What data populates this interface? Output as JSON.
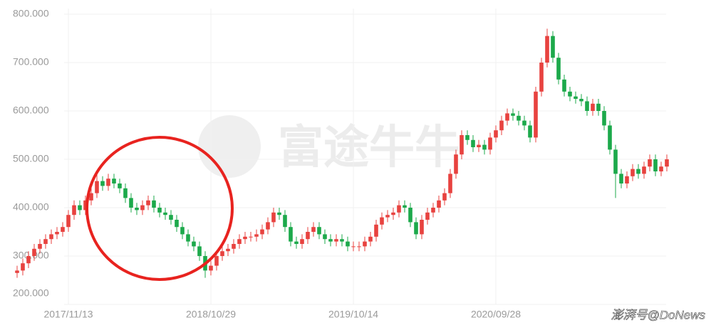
{
  "chart_data": {
    "type": "candlestick",
    "watermark": "富途牛牛",
    "source_credit": "澎湃号@DoNews",
    "up_color": "#e8423f",
    "down_color": "#1ca94b",
    "grid": true,
    "ylim": [
      200,
      800
    ],
    "yticks": [
      {
        "value": 200,
        "label": "200.000"
      },
      {
        "value": 300,
        "label": "300.000"
      },
      {
        "value": 400,
        "label": "400.000"
      },
      {
        "value": 500,
        "label": "500.000"
      },
      {
        "value": 600,
        "label": "600.000"
      },
      {
        "value": 700,
        "label": "700.000"
      },
      {
        "value": 800,
        "label": "800.000"
      }
    ],
    "categories": [
      null,
      null,
      null,
      null,
      null,
      null,
      null,
      null,
      null,
      "2017/11/13",
      null,
      null,
      null,
      null,
      null,
      null,
      null,
      null,
      null,
      null,
      null,
      null,
      null,
      null,
      null,
      null,
      null,
      null,
      null,
      null,
      null,
      null,
      null,
      null,
      "2018/10/29",
      null,
      null,
      null,
      null,
      null,
      null,
      null,
      null,
      null,
      null,
      null,
      null,
      null,
      null,
      null,
      null,
      null,
      null,
      null,
      null,
      null,
      null,
      null,
      null,
      "2019/10/14",
      null,
      null,
      null,
      null,
      null,
      null,
      null,
      null,
      null,
      null,
      null,
      null,
      null,
      null,
      null,
      null,
      null,
      null,
      null,
      null,
      null,
      null,
      null,
      null,
      "2020/09/28",
      null,
      null,
      null,
      null,
      null,
      null,
      null,
      null,
      null,
      null,
      null,
      null,
      null,
      null,
      null,
      null,
      null,
      null,
      null,
      null,
      null,
      null,
      null,
      null,
      null,
      null,
      null,
      null,
      null,
      null
    ],
    "open": [
      265,
      270,
      285,
      300,
      315,
      325,
      335,
      345,
      350,
      360,
      385,
      405,
      395,
      415,
      430,
      455,
      445,
      460,
      450,
      440,
      420,
      400,
      395,
      405,
      415,
      400,
      390,
      385,
      375,
      360,
      345,
      330,
      320,
      300,
      270,
      280,
      300,
      310,
      315,
      325,
      335,
      340,
      340,
      345,
      355,
      370,
      390,
      385,
      360,
      330,
      325,
      335,
      350,
      360,
      345,
      335,
      330,
      335,
      330,
      320,
      320,
      320,
      330,
      340,
      365,
      380,
      385,
      390,
      405,
      400,
      370,
      345,
      375,
      390,
      400,
      415,
      430,
      470,
      510,
      550,
      540,
      525,
      530,
      520,
      545,
      560,
      580,
      595,
      590,
      580,
      570,
      545,
      640,
      700,
      755,
      710,
      665,
      640,
      630,
      625,
      620,
      600,
      615,
      600,
      570,
      520,
      470,
      450,
      465,
      480,
      470,
      485,
      500,
      475,
      485
    ],
    "high": [
      280,
      295,
      310,
      325,
      335,
      345,
      355,
      360,
      370,
      395,
      415,
      415,
      425,
      440,
      470,
      465,
      470,
      470,
      460,
      450,
      430,
      410,
      415,
      425,
      425,
      410,
      400,
      395,
      385,
      370,
      355,
      340,
      330,
      310,
      290,
      310,
      320,
      325,
      335,
      345,
      350,
      350,
      355,
      365,
      380,
      400,
      400,
      395,
      370,
      340,
      345,
      360,
      370,
      370,
      355,
      345,
      345,
      345,
      340,
      330,
      330,
      340,
      350,
      375,
      390,
      395,
      400,
      415,
      415,
      410,
      380,
      385,
      400,
      410,
      425,
      440,
      480,
      520,
      560,
      560,
      550,
      540,
      540,
      555,
      570,
      590,
      605,
      605,
      600,
      590,
      580,
      650,
      710,
      770,
      765,
      720,
      675,
      650,
      640,
      635,
      630,
      625,
      625,
      610,
      580,
      530,
      480,
      475,
      490,
      490,
      495,
      510,
      510,
      495,
      510
    ],
    "low": [
      255,
      260,
      275,
      290,
      305,
      315,
      325,
      335,
      340,
      350,
      375,
      385,
      385,
      405,
      420,
      435,
      435,
      440,
      430,
      410,
      390,
      385,
      385,
      395,
      390,
      380,
      375,
      365,
      350,
      335,
      320,
      310,
      290,
      255,
      260,
      270,
      290,
      300,
      305,
      315,
      325,
      330,
      330,
      335,
      345,
      360,
      375,
      350,
      320,
      315,
      315,
      325,
      340,
      335,
      325,
      320,
      320,
      320,
      310,
      310,
      310,
      310,
      320,
      330,
      355,
      370,
      375,
      380,
      390,
      360,
      335,
      335,
      365,
      380,
      390,
      405,
      420,
      460,
      500,
      530,
      515,
      515,
      510,
      510,
      535,
      550,
      570,
      580,
      570,
      560,
      535,
      535,
      630,
      690,
      700,
      655,
      630,
      620,
      615,
      610,
      590,
      590,
      590,
      560,
      510,
      420,
      440,
      440,
      455,
      460,
      460,
      475,
      465,
      465,
      475
    ],
    "close": [
      270,
      285,
      300,
      315,
      325,
      335,
      345,
      350,
      360,
      385,
      405,
      395,
      415,
      430,
      455,
      445,
      460,
      450,
      440,
      420,
      400,
      395,
      405,
      415,
      400,
      390,
      385,
      375,
      360,
      345,
      330,
      320,
      300,
      270,
      280,
      300,
      310,
      315,
      325,
      335,
      340,
      340,
      345,
      355,
      370,
      390,
      385,
      360,
      330,
      325,
      335,
      350,
      360,
      345,
      335,
      330,
      335,
      330,
      320,
      320,
      320,
      330,
      340,
      365,
      380,
      385,
      390,
      405,
      400,
      370,
      345,
      375,
      390,
      400,
      415,
      430,
      470,
      510,
      550,
      540,
      525,
      530,
      520,
      545,
      560,
      580,
      595,
      590,
      580,
      570,
      545,
      640,
      700,
      755,
      710,
      665,
      640,
      630,
      625,
      620,
      600,
      615,
      600,
      570,
      520,
      470,
      450,
      465,
      480,
      470,
      485,
      500,
      475,
      485,
      500
    ]
  }
}
